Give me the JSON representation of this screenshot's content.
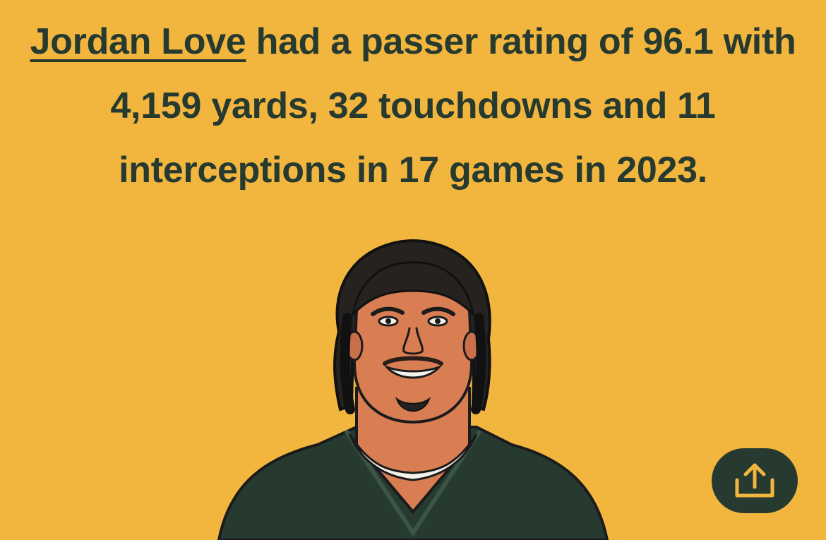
{
  "headline": {
    "player_name": "Jordan Love",
    "rest": " had a passer rating of 96.1 with 4,159 yards, 32 touchdowns and 11 interceptions in 17 games in 2023."
  },
  "colors": {
    "background": "#F2B63F",
    "text": "#263A30",
    "jersey": "#263A30",
    "skin": "#D97E53",
    "share_icon": "#F2B63F"
  },
  "icons": {
    "share": "share-icon"
  }
}
